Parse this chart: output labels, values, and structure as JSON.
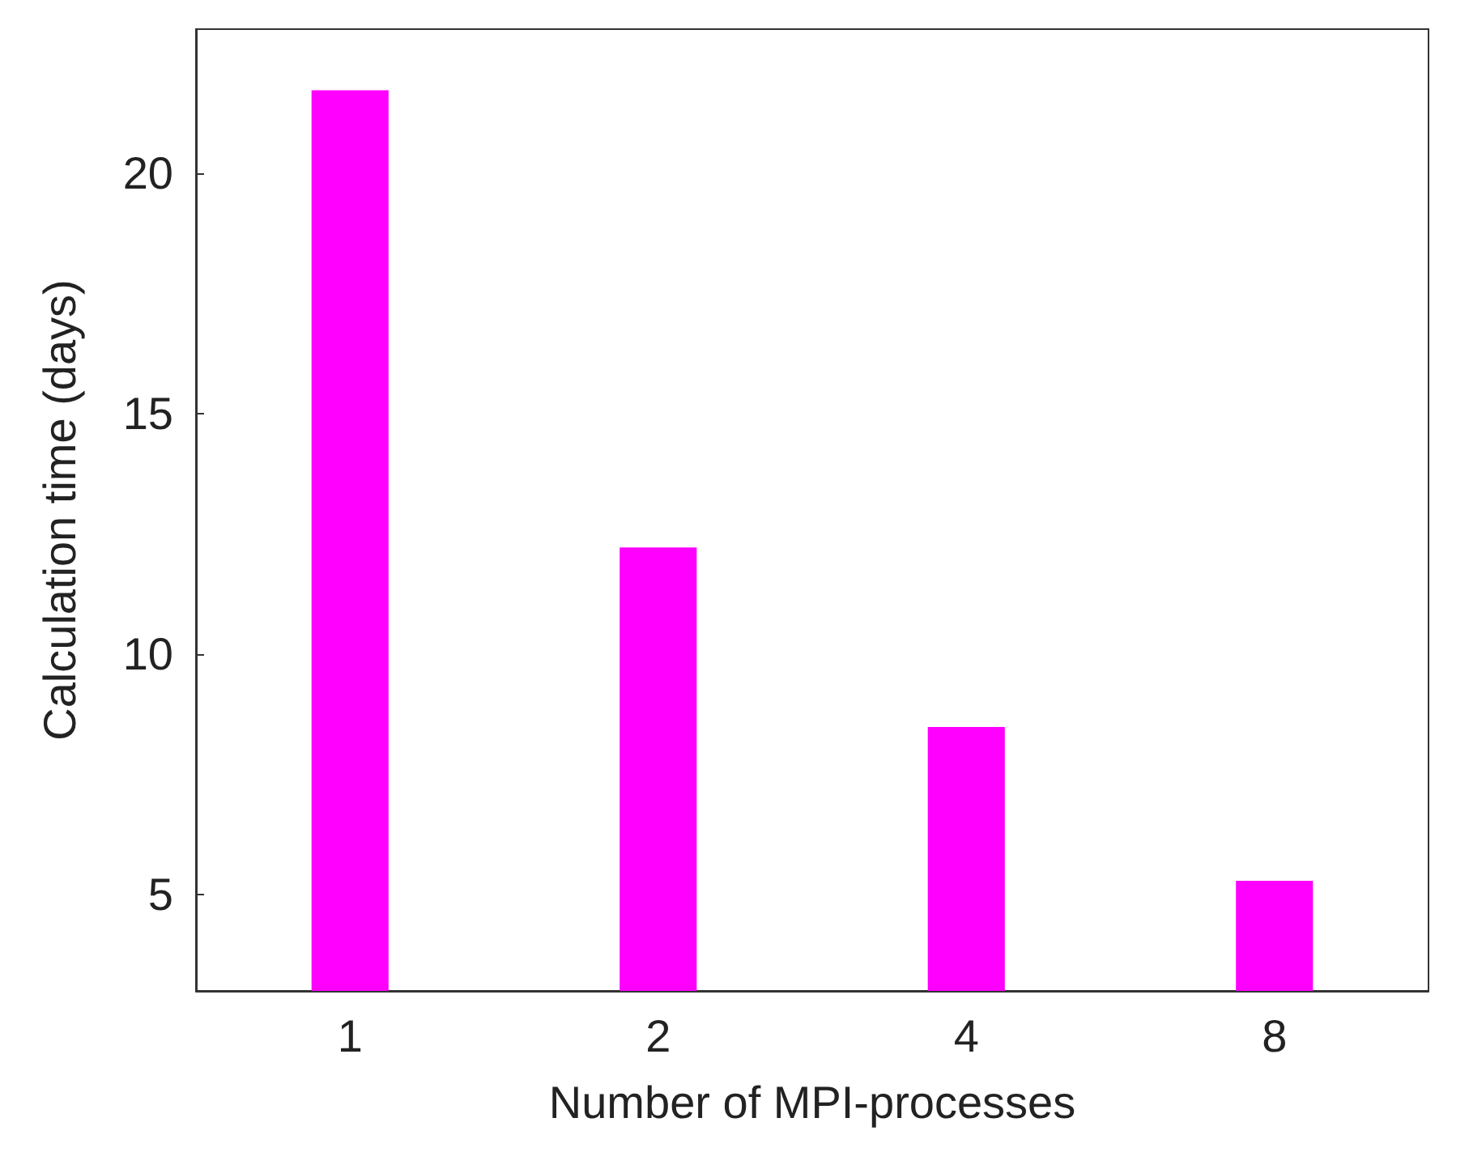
{
  "chart_data": {
    "type": "bar",
    "xlabel": "Number of MPI-processes",
    "ylabel": "Calculation time (days)",
    "categories": [
      "1",
      "2",
      "4",
      "8"
    ],
    "values": [
      21.73,
      12.22,
      8.49,
      5.29
    ],
    "color": "#ff00ff",
    "ylim": [
      3,
      23
    ],
    "yticks": [
      5,
      10,
      15,
      20
    ],
    "grid": false
  }
}
